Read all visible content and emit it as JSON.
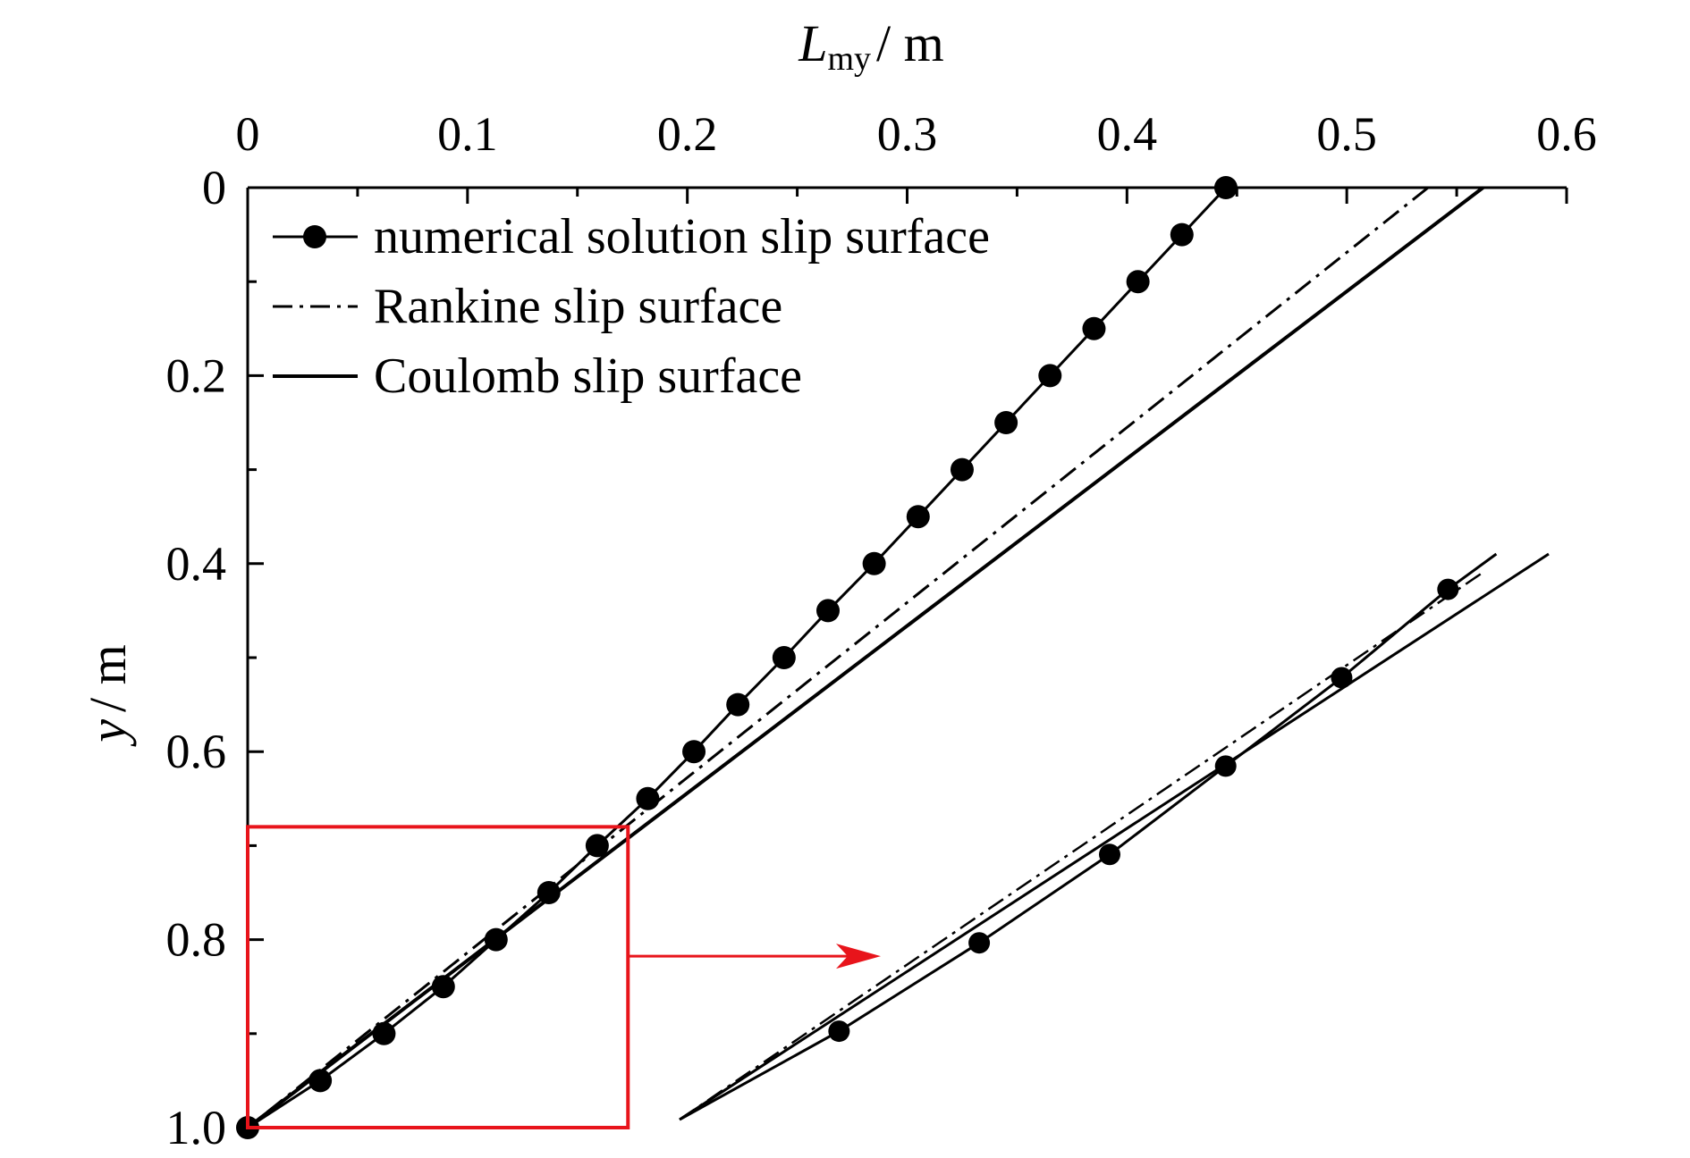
{
  "chart_data": {
    "type": "line",
    "x_axis": {
      "label_main": "L",
      "label_sub": "my",
      "label_unit": "/ m",
      "position": "top",
      "range": [
        0,
        0.6
      ],
      "ticks": [
        0,
        0.1,
        0.2,
        0.3,
        0.4,
        0.5,
        0.6
      ],
      "tick_labels": [
        "0",
        "0.1",
        "0.2",
        "0.3",
        "0.4",
        "0.5",
        "0.6"
      ]
    },
    "y_axis": {
      "label_main": "y",
      "label_unit": "/ m",
      "range": [
        0,
        1.0
      ],
      "inverted": true,
      "ticks": [
        0,
        0.2,
        0.4,
        0.6,
        0.8,
        1.0
      ],
      "tick_labels": [
        "0",
        "0.2",
        "0.4",
        "0.6",
        "0.8",
        "1.0"
      ]
    },
    "grid": false,
    "legend_position": "top-left",
    "series": [
      {
        "name": "numerical solution slip surface",
        "style": "solid-markers",
        "points": [
          [
            0.445,
            0
          ],
          [
            0.425,
            0.05
          ],
          [
            0.405,
            0.1
          ],
          [
            0.385,
            0.15
          ],
          [
            0.365,
            0.2
          ],
          [
            0.345,
            0.25
          ],
          [
            0.325,
            0.3
          ],
          [
            0.305,
            0.35
          ],
          [
            0.285,
            0.4
          ],
          [
            0.264,
            0.45
          ],
          [
            0.244,
            0.5
          ],
          [
            0.223,
            0.55
          ],
          [
            0.203,
            0.6
          ],
          [
            0.182,
            0.65
          ],
          [
            0.159,
            0.7
          ],
          [
            0.137,
            0.75
          ],
          [
            0.113,
            0.8
          ],
          [
            0.089,
            0.85
          ],
          [
            0.062,
            0.9
          ],
          [
            0.033,
            0.95
          ],
          [
            0.0,
            1.0
          ]
        ]
      },
      {
        "name": "Rankine slip surface",
        "style": "dash-dot",
        "points": [
          [
            0.537,
            0
          ],
          [
            0.0,
            1.0
          ]
        ]
      },
      {
        "name": "Coulomb slip surface",
        "style": "solid",
        "points": [
          [
            0.562,
            0
          ],
          [
            0.0,
            1.0
          ]
        ]
      }
    ],
    "zoom_region": {
      "x_range": [
        0,
        0.173
      ],
      "y_range": [
        0.68,
        1.0
      ],
      "color": "#e8141b"
    },
    "inset_markers": [
      [
        0,
        1.0
      ],
      [
        0.033,
        0.95
      ],
      [
        0.062,
        0.9
      ],
      [
        0.089,
        0.85
      ],
      [
        0.113,
        0.8
      ],
      [
        0.137,
        0.75
      ],
      [
        0.159,
        0.7
      ]
    ]
  }
}
